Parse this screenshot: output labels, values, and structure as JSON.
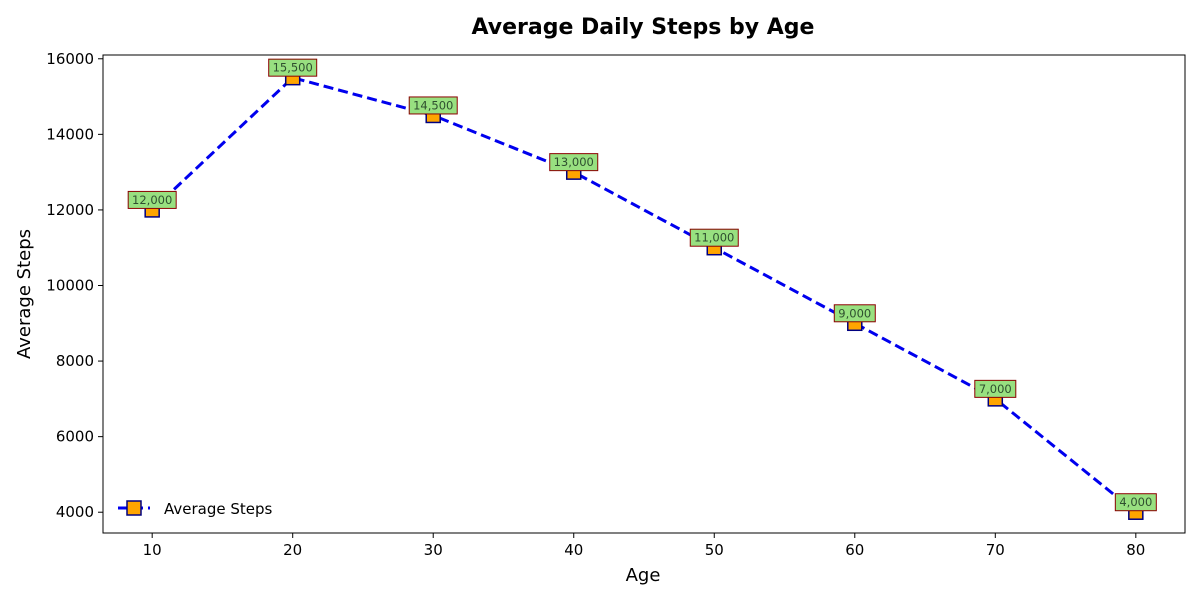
{
  "chart_data": {
    "type": "line",
    "title": "Average Daily Steps by Age",
    "xlabel": "Age",
    "ylabel": "Average Steps",
    "x": [
      10,
      20,
      30,
      40,
      50,
      60,
      70,
      80
    ],
    "series": [
      {
        "name": "Average Steps",
        "values": [
          12000,
          15500,
          14500,
          13000,
          11000,
          9000,
          7000,
          4000
        ],
        "data_labels": [
          "12,000",
          "15,500",
          "14,500",
          "13,000",
          "11,000",
          "9,000",
          "7,000",
          "4,000"
        ]
      }
    ],
    "xlim": [
      6.5,
      83.5
    ],
    "ylim": [
      3450,
      16100
    ],
    "x_ticks": [
      10,
      20,
      30,
      40,
      50,
      60,
      70,
      80
    ],
    "y_ticks": [
      4000,
      6000,
      8000,
      10000,
      12000,
      14000,
      16000
    ],
    "grid": false,
    "legend_position": "lower-left",
    "colors": {
      "line": "#0000ee",
      "marker_fill": "#ffa500",
      "marker_edge": "#000080",
      "label_fill": "#98e080",
      "label_edge": "#8b0000"
    },
    "line_style": "dashed",
    "marker": "square"
  }
}
